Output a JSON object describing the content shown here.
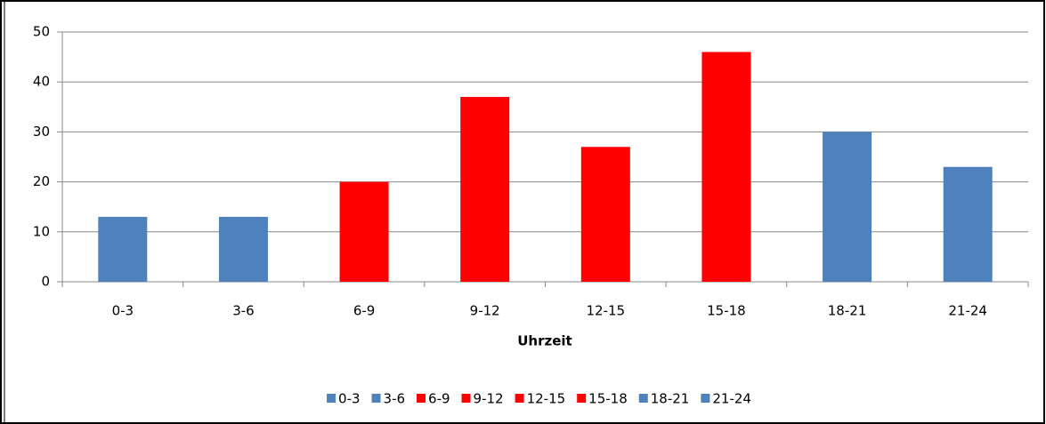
{
  "chart_data": {
    "type": "bar",
    "x_label": "Uhrzeit",
    "categories": [
      "0-3",
      "3-6",
      "6-9",
      "9-12",
      "12-15",
      "15-18",
      "18-21",
      "21-24"
    ],
    "values": [
      13,
      13,
      20,
      37,
      27,
      46,
      30,
      23
    ],
    "colors": [
      "#4f81bd",
      "#4f81bd",
      "#ff0000",
      "#ff0000",
      "#ff0000",
      "#ff0000",
      "#4f81bd",
      "#4f81bd"
    ],
    "ylim": [
      0,
      50
    ],
    "yticks": [
      0,
      10,
      20,
      30,
      40,
      50
    ],
    "grid": true,
    "legend": "bottom"
  }
}
